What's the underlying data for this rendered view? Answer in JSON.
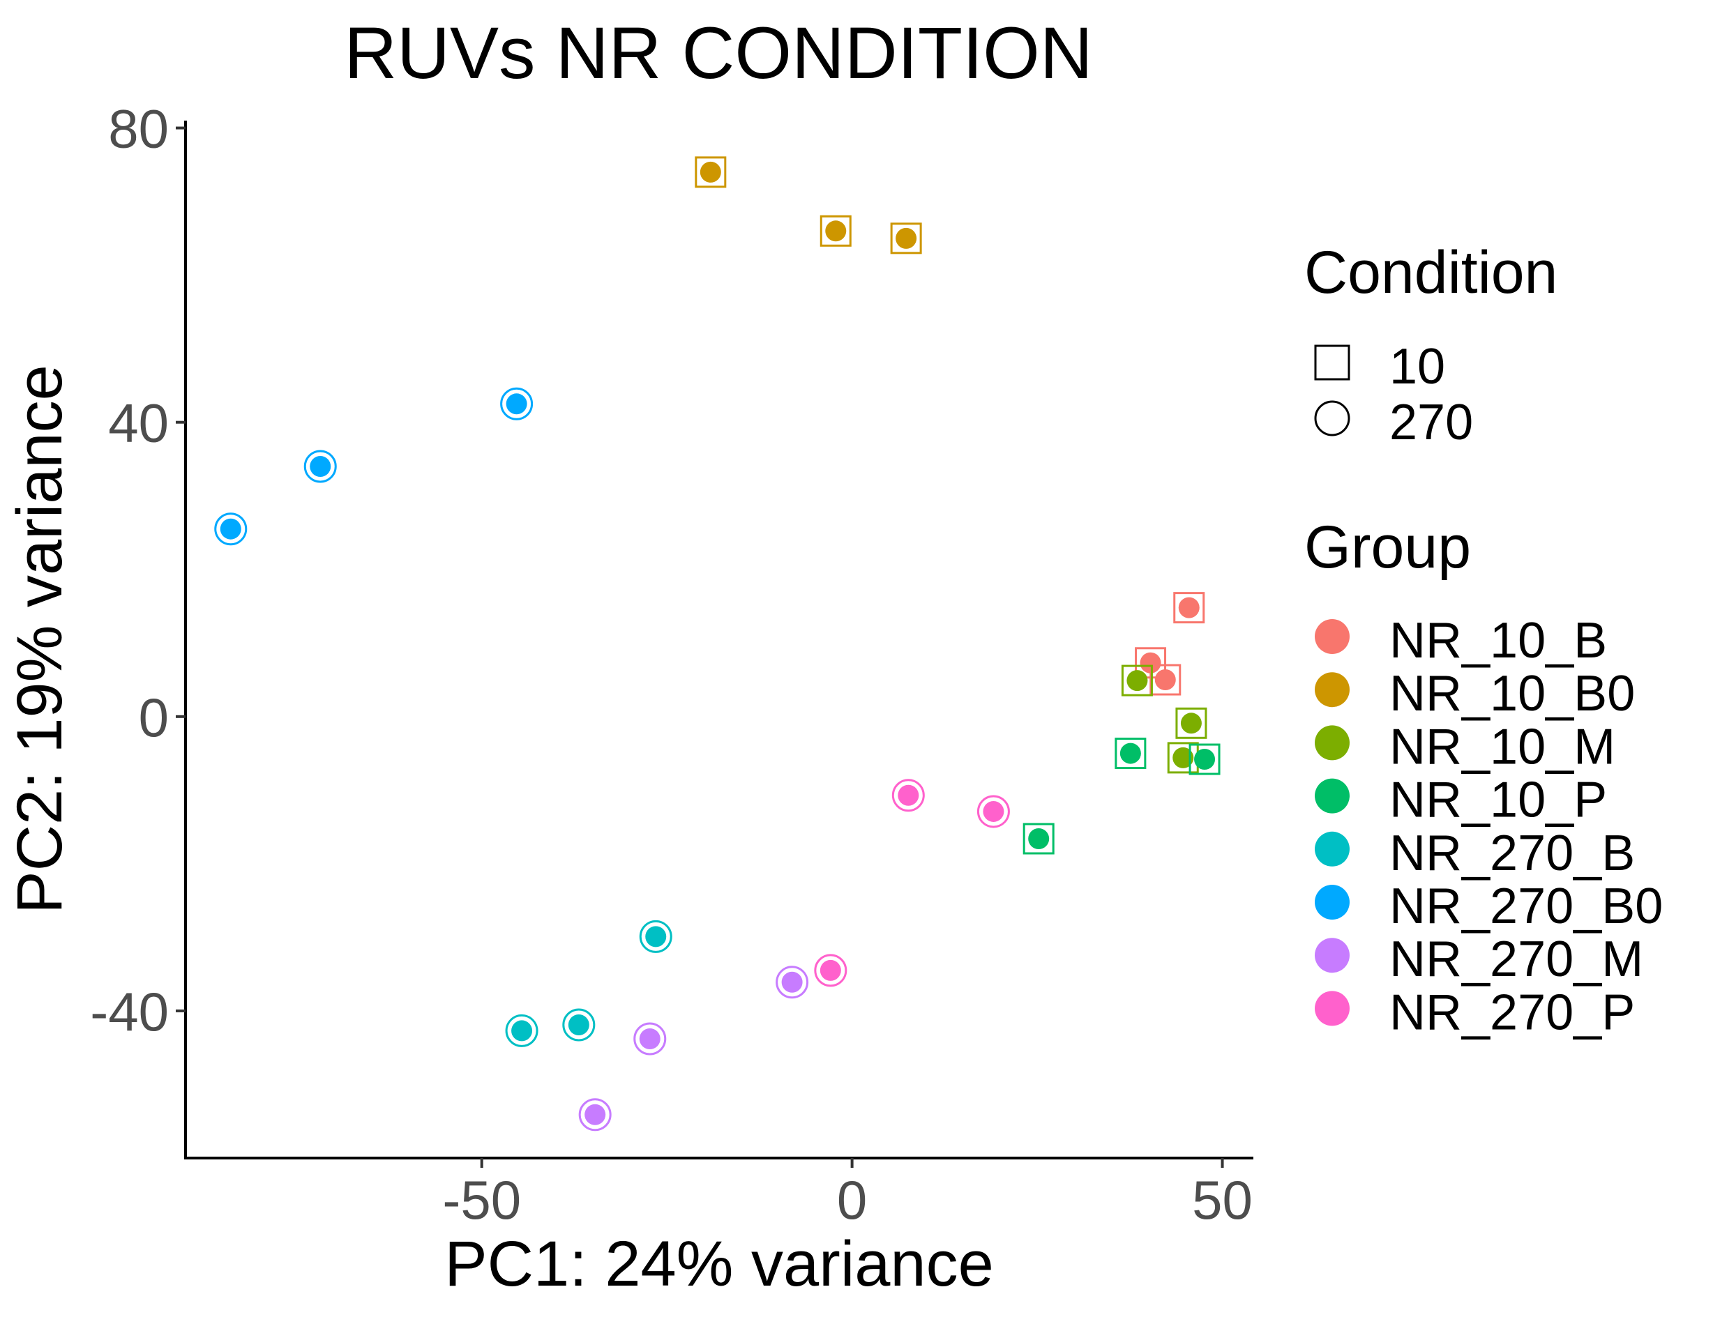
{
  "chart_data": {
    "type": "scatter",
    "title": "RUVs NR CONDITION",
    "xlabel": "PC1: 24% variance",
    "ylabel": "PC2: 19% variance",
    "xlim": [
      -90,
      54
    ],
    "ylim": [
      -60,
      81
    ],
    "xticks": [
      -50,
      0,
      50
    ],
    "yticks": [
      -40,
      0,
      40,
      80
    ],
    "xtick_labels": [
      "-50",
      "0",
      "50"
    ],
    "ytick_labels": [
      "-40",
      "0",
      "40",
      "80"
    ],
    "grid": false,
    "legend_position": "right",
    "legend": {
      "condition_title": "Condition",
      "condition_items": [
        {
          "label": "10",
          "shape": "square"
        },
        {
          "label": "270",
          "shape": "circle"
        }
      ],
      "group_title": "Group"
    },
    "series": [
      {
        "name": "NR_10_B",
        "color": "#F8766D",
        "condition": "10",
        "points": [
          [
            45.5,
            14.8
          ],
          [
            40.3,
            7.3
          ],
          [
            42.3,
            5.0
          ]
        ]
      },
      {
        "name": "NR_10_B0",
        "color": "#CD9600",
        "condition": "10",
        "points": [
          [
            -19.1,
            74.0
          ],
          [
            -2.2,
            66.0
          ],
          [
            7.3,
            65.0
          ]
        ]
      },
      {
        "name": "NR_10_M",
        "color": "#7CAE00",
        "condition": "10",
        "points": [
          [
            38.5,
            4.9
          ],
          [
            45.8,
            -0.9
          ],
          [
            44.7,
            -5.6
          ]
        ]
      },
      {
        "name": "NR_10_P",
        "color": "#00BE67",
        "condition": "10",
        "points": [
          [
            37.6,
            -5.0
          ],
          [
            47.6,
            -5.8
          ],
          [
            25.2,
            -16.6
          ]
        ]
      },
      {
        "name": "NR_270_B",
        "color": "#00BFC4",
        "condition": "270",
        "points": [
          [
            -26.5,
            -29.9
          ],
          [
            -36.9,
            -41.9
          ],
          [
            -44.6,
            -42.7
          ]
        ]
      },
      {
        "name": "NR_270_B0",
        "color": "#00A9FF",
        "condition": "270",
        "points": [
          [
            -45.3,
            42.5
          ],
          [
            -71.8,
            34.0
          ],
          [
            -83.9,
            25.5
          ]
        ]
      },
      {
        "name": "NR_270_M",
        "color": "#C77CFF",
        "condition": "270",
        "points": [
          [
            -8.1,
            -36.1
          ],
          [
            -27.3,
            -43.8
          ],
          [
            -34.7,
            -54.1
          ]
        ]
      },
      {
        "name": "NR_270_P",
        "color": "#FF61CC",
        "condition": "270",
        "points": [
          [
            7.6,
            -10.7
          ],
          [
            19.1,
            -12.9
          ],
          [
            -2.9,
            -34.5
          ]
        ]
      }
    ]
  }
}
